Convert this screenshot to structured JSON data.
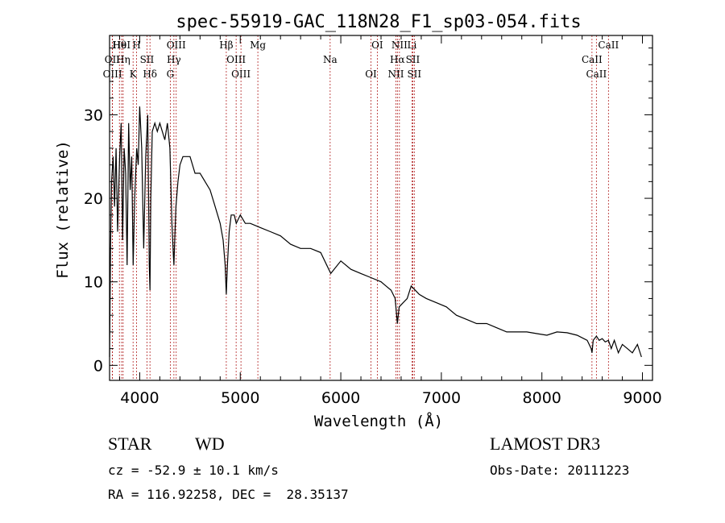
{
  "chart_data": {
    "type": "line",
    "title": "spec-55919-GAC_118N28_F1_sp03-054.fits",
    "xlabel": "Wavelength (Å)",
    "ylabel": "Flux (relative)",
    "xlim": [
      3700,
      9100
    ],
    "ylim": [
      -1.8,
      39.5
    ],
    "xticks": [
      4000,
      5000,
      6000,
      7000,
      8000,
      9000
    ],
    "yticks": [
      0,
      10,
      20,
      30
    ],
    "grid": false,
    "series": [
      {
        "name": "spectrum",
        "x": [
          3700,
          3710,
          3720,
          3735,
          3750,
          3765,
          3780,
          3800,
          3815,
          3830,
          3845,
          3860,
          3875,
          3890,
          3905,
          3920,
          3935,
          3950,
          3970,
          3985,
          4000,
          4020,
          4040,
          4060,
          4080,
          4095,
          4102,
          4110,
          4125,
          4150,
          4175,
          4200,
          4225,
          4250,
          4275,
          4300,
          4320,
          4335,
          4340,
          4348,
          4360,
          4380,
          4400,
          4430,
          4470,
          4500,
          4550,
          4600,
          4650,
          4700,
          4750,
          4800,
          4830,
          4850,
          4861,
          4872,
          4890,
          4910,
          4940,
          4960,
          5000,
          5050,
          5100,
          5200,
          5300,
          5400,
          5500,
          5600,
          5700,
          5800,
          5900,
          6000,
          6100,
          6200,
          6300,
          6400,
          6450,
          6500,
          6540,
          6563,
          6580,
          6620,
          6660,
          6700,
          6740,
          6780,
          6850,
          6950,
          7050,
          7150,
          7250,
          7350,
          7450,
          7550,
          7650,
          7750,
          7850,
          7950,
          8050,
          8150,
          8250,
          8350,
          8450,
          8490,
          8498,
          8510,
          8542,
          8570,
          8600,
          8630,
          8662,
          8690,
          8720,
          8760,
          8800,
          8850,
          8900,
          8950,
          8990
        ],
        "y": [
          1,
          14,
          22,
          25,
          19,
          26,
          16,
          25,
          29,
          15,
          26,
          23,
          12,
          29,
          21,
          25,
          12,
          20,
          26,
          24,
          31,
          26,
          14,
          25,
          30,
          12,
          9,
          20,
          28,
          29,
          28,
          29,
          28,
          27,
          29,
          26,
          17,
          13,
          12,
          15,
          19,
          22,
          24,
          25,
          25,
          25,
          23,
          23,
          22,
          21,
          19,
          17,
          15,
          12,
          8.5,
          12,
          16,
          18,
          18,
          17,
          18,
          17,
          17,
          16.5,
          16,
          15.5,
          14.5,
          14,
          14,
          13.5,
          11,
          12.5,
          11.5,
          11,
          10.5,
          10,
          9.5,
          9,
          8,
          5,
          7,
          7.5,
          8,
          9.5,
          9,
          8.5,
          8,
          7.5,
          7,
          6,
          5.5,
          5,
          5,
          4.5,
          4,
          4,
          4,
          3.8,
          3.6,
          4,
          3.9,
          3.6,
          3,
          2,
          1.5,
          3,
          3.5,
          3,
          3.2,
          2.8,
          3,
          2,
          3,
          1.5,
          2.5,
          2,
          1.5,
          2.5,
          1
        ]
      }
    ],
    "spectral_lines": [
      {
        "label": "Hθ",
        "wavelength": 3798
      },
      {
        "label": "OII",
        "wavelength": 3727
      },
      {
        "label": "OIII",
        "wavelength": 3729
      },
      {
        "label": "HeI",
        "wavelength": 3820
      },
      {
        "label": "Hη",
        "wavelength": 3835
      },
      {
        "label": "K",
        "wavelength": 3934
      },
      {
        "label": "H",
        "wavelength": 3969
      },
      {
        "label": "SII",
        "wavelength": 4072
      },
      {
        "label": "Hδ",
        "wavelength": 4102
      },
      {
        "label": "OIII",
        "wavelength": 4363
      },
      {
        "label": "Hγ",
        "wavelength": 4340
      },
      {
        "label": "G",
        "wavelength": 4304
      },
      {
        "label": "Hβ",
        "wavelength": 4861
      },
      {
        "label": "OIII",
        "wavelength": 4959
      },
      {
        "label": "OIII",
        "wavelength": 5007
      },
      {
        "label": "Mg",
        "wavelength": 5175
      },
      {
        "label": "Na",
        "wavelength": 5894
      },
      {
        "label": "OI",
        "wavelength": 6300
      },
      {
        "label": "OI",
        "wavelength": 6363
      },
      {
        "label": "Hα",
        "wavelength": 6563
      },
      {
        "label": "NII",
        "wavelength": 6548
      },
      {
        "label": "NII",
        "wavelength": 6583
      },
      {
        "label": "SII",
        "wavelength": 6716
      },
      {
        "label": "SII",
        "wavelength": 6731
      },
      {
        "label": "Li",
        "wavelength": 6708
      },
      {
        "label": "CaII",
        "wavelength": 8498
      },
      {
        "label": "CaII",
        "wavelength": 8542
      },
      {
        "label": "CaII",
        "wavelength": 8662
      }
    ]
  },
  "info": {
    "object_class": "STAR",
    "subclass": "WD",
    "survey": "LAMOST DR3",
    "redshift": "cz = -52.9 ± 10.1 km/s",
    "obs_date": "Obs-Date: 20111223",
    "coords": "RA = 116.92258, DEC =  28.35137"
  },
  "colors": {
    "spectrum": "#000000",
    "line_marker": "#b22222",
    "axis": "#000000"
  }
}
